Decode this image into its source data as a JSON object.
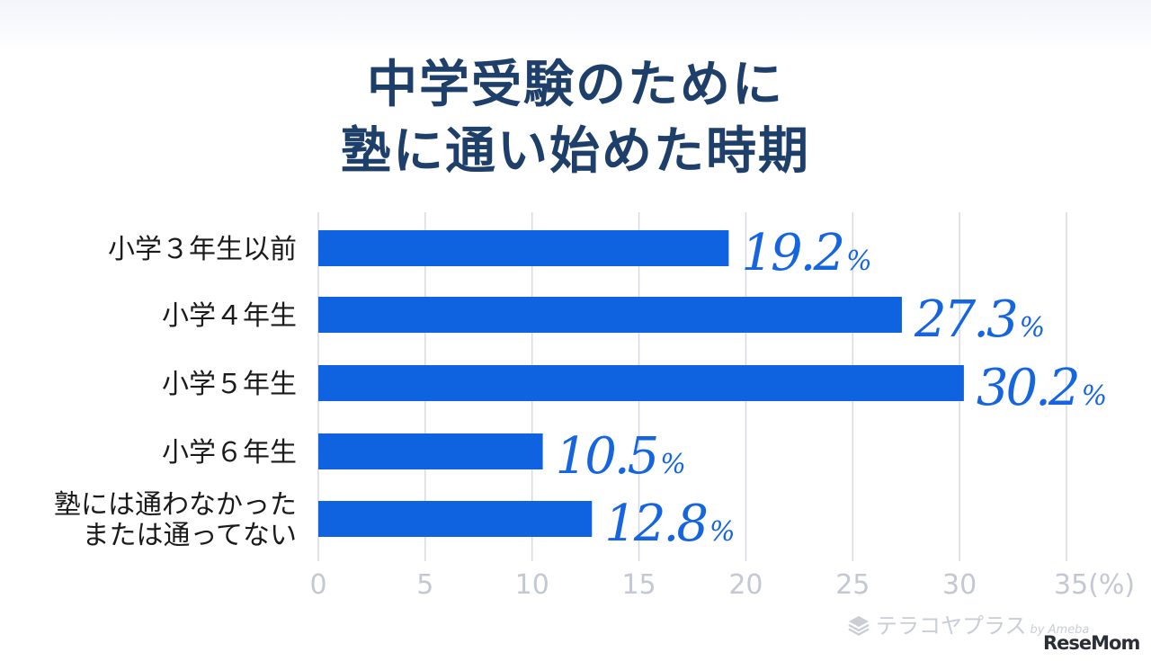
{
  "title_lines": [
    "中学受験のために",
    "塾に通い始めた時期"
  ],
  "colors": {
    "bar": "#0f63e0",
    "value_text": "#1665e0",
    "title": "#1d3f6a",
    "grid": "#d6dae2",
    "tick_text": "#c3c8d2",
    "category_text": "#1a1a1a"
  },
  "chart_data": {
    "type": "bar",
    "orientation": "horizontal",
    "title": "中学受験のために塾に通い始めた時期",
    "categories": [
      [
        "小学３年生以前"
      ],
      [
        "小学４年生"
      ],
      [
        "小学５年生"
      ],
      [
        "小学６年生"
      ],
      [
        "塾には通わなかった",
        "または通ってない"
      ]
    ],
    "values": [
      19.2,
      27.3,
      30.2,
      10.5,
      12.8
    ],
    "value_labels": [
      "19.2",
      "27.3",
      "30.2",
      "10.5",
      "12.8"
    ],
    "value_suffix": "%",
    "xlim": [
      0,
      35
    ],
    "xticks": [
      0,
      5,
      10,
      15,
      20,
      25,
      30,
      35
    ],
    "xtick_labels": [
      "0",
      "5",
      "10",
      "15",
      "20",
      "25",
      "30",
      "35(%)"
    ],
    "grid": "vertical"
  },
  "branding": {
    "terakoya": "テラコヤプラス",
    "terakoya_by": "by Ameba",
    "resemom": "ReseMom"
  }
}
